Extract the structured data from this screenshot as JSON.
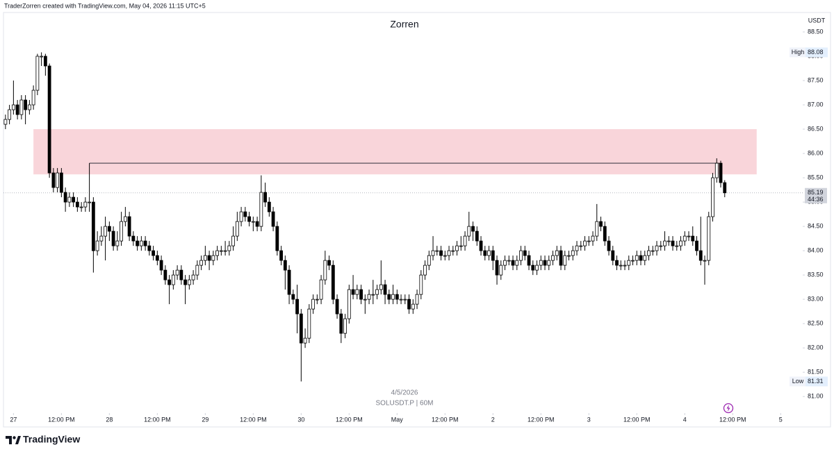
{
  "header": "TraderZorren created with TradingView.com, May 04, 2026 11:15 UTC+5",
  "chart_data": {
    "type": "candlestick",
    "title": "Zorren",
    "currency": "USDT",
    "watermark_date": "4/5/2026",
    "watermark_symbol": "SOLUSDT.P | 60M",
    "open": [
      86.6,
      86.7,
      86.9,
      87.0,
      86.8,
      87.1,
      86.9,
      87.0,
      87.3,
      88.0,
      88.0,
      87.8,
      85.6,
      85.3,
      85.6,
      85.2,
      85.0,
      85.1,
      85.0,
      84.9,
      84.9,
      85.0,
      85.0,
      84.0,
      84.2,
      84.3,
      84.5,
      84.4,
      84.1,
      84.2,
      84.6,
      84.7,
      84.3,
      84.2,
      84.1,
      84.2,
      84.1,
      84.0,
      83.9,
      83.8,
      83.6,
      83.4,
      83.3,
      83.5,
      83.6,
      83.4,
      83.3,
      83.4,
      83.5,
      83.7,
      83.8,
      83.9,
      83.8,
      83.9,
      84.0,
      84.0,
      84.0,
      84.1,
      84.3,
      84.6,
      84.8,
      84.7,
      84.6,
      84.6,
      84.5,
      85.2,
      85.0,
      84.8,
      84.5,
      84.0,
      83.8,
      83.6,
      83.1,
      83.0,
      82.7,
      82.1,
      82.2,
      82.8,
      83.0,
      83.0,
      83.4,
      83.8,
      83.7,
      83.0,
      82.7,
      82.3,
      82.6,
      83.2,
      83.1,
      83.2,
      83.0,
      83.0,
      83.1,
      83.1,
      83.2,
      83.3,
      83.1,
      83.0,
      83.1,
      83.0,
      83.0,
      83.0,
      82.8,
      82.9,
      83.1,
      83.5,
      83.7,
      83.9,
      84.0,
      84.0,
      83.9,
      83.9,
      84.0,
      84.0,
      84.1,
      84.1,
      84.3,
      84.5,
      84.4,
      84.2,
      84.0,
      83.9,
      84.0,
      83.8,
      83.5,
      83.7,
      83.8,
      83.8,
      83.7,
      83.8,
      84.0,
      83.9,
      83.7,
      83.6,
      83.7,
      83.8,
      83.7,
      83.8,
      83.9,
      84.0,
      83.7,
      83.9,
      83.9,
      84.0,
      84.1,
      84.1,
      84.2,
      84.2,
      84.3,
      84.6,
      84.5,
      84.2,
      84.0,
      83.8,
      83.7,
      83.7,
      83.7,
      83.8,
      83.8,
      83.9,
      83.8,
      83.9,
      84.0,
      84.0,
      84.1,
      84.1,
      84.2,
      84.2,
      84.1,
      84.1,
      84.2,
      84.3,
      84.3,
      84.2,
      84.0,
      83.8,
      83.8,
      84.7,
      85.5,
      85.8,
      85.4
    ],
    "high": [
      86.8,
      87.0,
      87.5,
      87.1,
      87.2,
      87.2,
      87.1,
      87.4,
      88.05,
      88.08,
      88.05,
      87.85,
      85.7,
      85.7,
      85.7,
      85.3,
      85.2,
      85.2,
      85.1,
      85.0,
      85.1,
      85.8,
      85.1,
      84.4,
      84.5,
      84.7,
      84.6,
      84.5,
      84.4,
      84.8,
      84.9,
      84.8,
      84.4,
      84.3,
      84.3,
      84.3,
      84.2,
      84.1,
      84.0,
      83.9,
      83.7,
      83.5,
      83.6,
      83.7,
      83.7,
      83.5,
      83.5,
      83.6,
      83.8,
      83.9,
      84.1,
      84.0,
      84.0,
      84.1,
      84.1,
      84.2,
      84.2,
      84.5,
      84.8,
      84.9,
      84.9,
      84.8,
      84.7,
      84.7,
      85.55,
      85.4,
      85.1,
      84.9,
      84.6,
      84.1,
      83.9,
      83.7,
      83.2,
      83.3,
      82.8,
      82.4,
      82.9,
      83.1,
      83.1,
      83.5,
      84.0,
      83.9,
      83.8,
      83.1,
      82.8,
      82.7,
      83.3,
      83.5,
      83.3,
      83.3,
      83.1,
      83.2,
      83.4,
      83.3,
      83.8,
      83.4,
      83.2,
      83.3,
      83.2,
      83.1,
      83.1,
      83.1,
      83.0,
      83.2,
      83.6,
      83.8,
      84.0,
      84.3,
      84.1,
      84.1,
      84.0,
      84.1,
      84.1,
      84.2,
      84.3,
      84.4,
      84.8,
      84.6,
      84.5,
      84.3,
      84.1,
      84.1,
      84.1,
      83.9,
      83.8,
      83.9,
      83.9,
      83.9,
      83.9,
      84.1,
      84.1,
      84.0,
      83.8,
      83.8,
      83.9,
      83.9,
      83.9,
      84.0,
      84.1,
      84.1,
      84.0,
      84.0,
      84.1,
      84.2,
      84.2,
      84.3,
      84.3,
      84.4,
      84.96,
      84.7,
      84.6,
      84.3,
      84.1,
      83.9,
      83.8,
      83.8,
      83.9,
      83.9,
      84.0,
      84.0,
      84.0,
      84.1,
      84.1,
      84.2,
      84.2,
      84.4,
      84.3,
      84.3,
      84.2,
      84.3,
      84.4,
      84.4,
      84.5,
      84.3,
      84.7,
      83.9,
      84.8,
      85.6,
      85.9,
      85.85,
      85.45
    ],
    "low": [
      86.5,
      86.6,
      86.8,
      86.7,
      86.7,
      86.6,
      86.8,
      86.9,
      87.2,
      87.8,
      87.6,
      85.5,
      85.2,
      85.2,
      85.1,
      84.8,
      84.9,
      84.9,
      84.8,
      84.8,
      84.8,
      84.8,
      83.55,
      83.9,
      84.1,
      83.8,
      84.2,
      84.0,
      84.0,
      84.1,
      84.5,
      84.2,
      84.1,
      84.0,
      84.0,
      84.0,
      83.9,
      83.8,
      83.7,
      83.5,
      83.3,
      82.9,
      83.2,
      83.4,
      83.3,
      82.9,
      83.2,
      83.3,
      83.4,
      83.6,
      83.7,
      83.6,
      83.7,
      83.8,
      83.9,
      83.9,
      83.9,
      84.0,
      84.2,
      84.5,
      84.6,
      84.5,
      84.4,
      84.4,
      84.4,
      84.9,
      84.7,
      84.4,
      83.9,
      83.7,
      83.2,
      82.9,
      82.9,
      82.3,
      81.31,
      82.0,
      82.1,
      82.7,
      82.9,
      82.9,
      83.3,
      83.6,
      82.9,
      82.6,
      82.1,
      82.2,
      82.5,
      83.0,
      83.0,
      82.9,
      82.7,
      82.9,
      82.9,
      83.0,
      83.1,
      82.9,
      82.9,
      82.9,
      82.9,
      82.9,
      82.9,
      82.7,
      82.7,
      82.8,
      83.0,
      83.4,
      83.6,
      83.8,
      83.9,
      83.8,
      83.8,
      83.8,
      83.9,
      83.9,
      84.0,
      84.0,
      84.2,
      84.2,
      84.1,
      83.9,
      83.8,
      83.8,
      83.6,
      83.3,
      83.4,
      83.6,
      83.7,
      83.6,
      83.6,
      83.7,
      83.8,
      83.6,
      83.5,
      83.5,
      83.6,
      83.6,
      83.6,
      83.7,
      83.8,
      83.6,
      83.6,
      83.8,
      83.8,
      83.9,
      84.0,
      84.0,
      84.1,
      84.1,
      84.2,
      84.4,
      84.1,
      83.9,
      83.7,
      83.6,
      83.6,
      83.6,
      83.6,
      83.7,
      83.7,
      83.7,
      83.7,
      83.8,
      83.9,
      83.9,
      84.0,
      84.0,
      84.1,
      84.0,
      84.0,
      84.0,
      84.1,
      84.2,
      84.1,
      83.9,
      83.7,
      83.3,
      83.7,
      84.6,
      85.4,
      85.3,
      85.1
    ],
    "close": [
      86.7,
      86.9,
      87.0,
      86.8,
      87.1,
      86.9,
      87.0,
      87.3,
      88.0,
      88.0,
      87.8,
      85.6,
      85.3,
      85.6,
      85.2,
      85.0,
      85.1,
      85.0,
      84.9,
      84.9,
      85.0,
      85.0,
      84.0,
      84.2,
      84.3,
      84.5,
      84.4,
      84.1,
      84.2,
      84.6,
      84.7,
      84.3,
      84.2,
      84.1,
      84.2,
      84.1,
      84.0,
      83.9,
      83.8,
      83.6,
      83.4,
      83.3,
      83.5,
      83.6,
      83.4,
      83.3,
      83.4,
      83.5,
      83.7,
      83.8,
      83.9,
      83.8,
      83.9,
      84.0,
      84.0,
      84.0,
      84.1,
      84.3,
      84.6,
      84.8,
      84.7,
      84.6,
      84.6,
      84.5,
      85.2,
      85.0,
      84.8,
      84.5,
      84.0,
      83.8,
      83.6,
      83.1,
      83.0,
      82.7,
      82.1,
      82.2,
      82.8,
      83.0,
      83.0,
      83.4,
      83.8,
      83.7,
      83.0,
      82.7,
      82.3,
      82.6,
      83.2,
      83.1,
      83.2,
      83.0,
      83.0,
      83.1,
      83.1,
      83.2,
      83.3,
      83.1,
      83.0,
      83.1,
      83.0,
      83.0,
      83.0,
      82.8,
      82.9,
      83.1,
      83.5,
      83.7,
      83.9,
      84.0,
      84.0,
      83.9,
      83.9,
      84.0,
      84.0,
      84.1,
      84.1,
      84.3,
      84.5,
      84.4,
      84.2,
      84.0,
      83.9,
      84.0,
      83.8,
      83.5,
      83.7,
      83.8,
      83.8,
      83.7,
      83.8,
      84.0,
      83.9,
      83.7,
      83.6,
      83.7,
      83.8,
      83.7,
      83.8,
      83.9,
      84.0,
      83.7,
      83.9,
      83.9,
      84.0,
      84.1,
      84.1,
      84.2,
      84.2,
      84.3,
      84.6,
      84.5,
      84.2,
      84.0,
      83.8,
      83.7,
      83.7,
      83.7,
      83.8,
      83.8,
      83.9,
      83.8,
      83.9,
      84.0,
      84.0,
      84.1,
      84.1,
      84.2,
      84.2,
      84.1,
      84.1,
      84.2,
      84.3,
      84.3,
      84.2,
      84.0,
      83.8,
      83.8,
      84.7,
      85.5,
      85.8,
      85.4,
      85.19
    ],
    "up_color": "#ffffff",
    "down_color": "#000000",
    "xlim": [
      -0.5,
      199
    ],
    "xticks": [
      {
        "value": 2,
        "label": "27"
      },
      {
        "value": 14,
        "label": "12:00 PM"
      },
      {
        "value": 26,
        "label": "28"
      },
      {
        "value": 38,
        "label": "12:00 PM"
      },
      {
        "value": 50,
        "label": "29"
      },
      {
        "value": 62,
        "label": "12:00 PM"
      },
      {
        "value": 74,
        "label": "30"
      },
      {
        "value": 86,
        "label": "12:00 PM"
      },
      {
        "value": 98,
        "label": "May"
      },
      {
        "value": 110,
        "label": "12:00 PM"
      },
      {
        "value": 122,
        "label": "2"
      },
      {
        "value": 134,
        "label": "12:00 PM"
      },
      {
        "value": 146,
        "label": "3"
      },
      {
        "value": 158,
        "label": "12:00 PM"
      },
      {
        "value": 170,
        "label": "4"
      },
      {
        "value": 182,
        "label": "12:00 PM"
      },
      {
        "value": 194,
        "label": "5"
      }
    ],
    "ylim": [
      80.66,
      88.9
    ],
    "yticks": [
      {
        "value": 81,
        "label": "81.00"
      },
      {
        "value": 81.5,
        "label": "81.50"
      },
      {
        "value": 82,
        "label": "82.00"
      },
      {
        "value": 82.5,
        "label": "82.50"
      },
      {
        "value": 83,
        "label": "83.00"
      },
      {
        "value": 83.5,
        "label": "83.50"
      },
      {
        "value": 84,
        "label": "84.00"
      },
      {
        "value": 84.5,
        "label": "84.50"
      },
      {
        "value": 85,
        "label": "85.00"
      },
      {
        "value": 85.5,
        "label": "85.50"
      },
      {
        "value": 86,
        "label": "86.00"
      },
      {
        "value": 86.5,
        "label": "86.50"
      },
      {
        "value": 87,
        "label": "87.00"
      },
      {
        "value": 87.5,
        "label": "87.50"
      },
      {
        "value": 88,
        "label": "88.00"
      },
      {
        "value": 88.5,
        "label": "88.50"
      }
    ],
    "high_label": {
      "text": "High",
      "value": 88.08
    },
    "low_label": {
      "text": "Low",
      "value": 81.31
    },
    "last_price": 85.19,
    "countdown": "44:36",
    "zone": {
      "xlim": [
        7,
        188
      ],
      "ylim": [
        85.57,
        86.5
      ],
      "color": "#f9d5da"
    },
    "level": {
      "xlim": [
        21,
        178.6
      ],
      "value": 85.8
    }
  },
  "footer": {
    "logo": "TradingView"
  }
}
